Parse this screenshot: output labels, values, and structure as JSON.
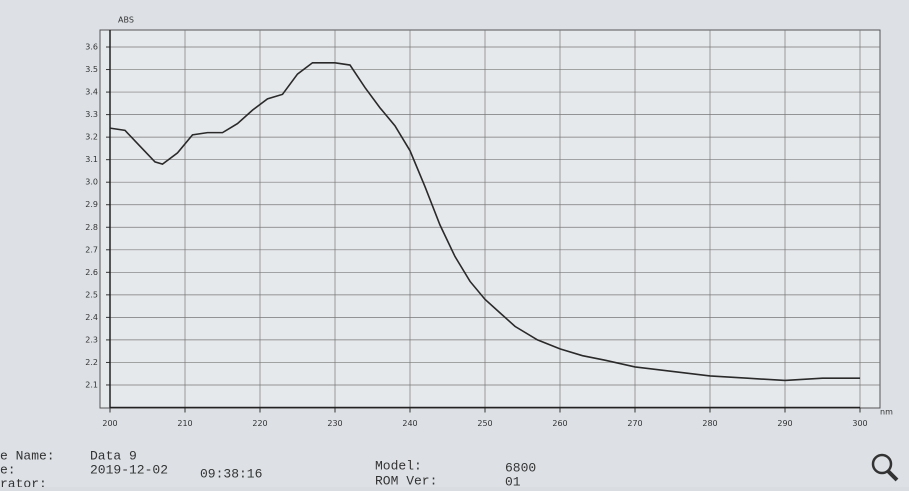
{
  "chart_data": {
    "type": "line",
    "y_label": "ABS",
    "x_label": "nm",
    "x": [
      200,
      202,
      204,
      206,
      207,
      209,
      211,
      213,
      215,
      217,
      219,
      221,
      223,
      225,
      227,
      230,
      232,
      234,
      236,
      238,
      240,
      242,
      244,
      246,
      248,
      250,
      252,
      254,
      257,
      260,
      263,
      266,
      270,
      275,
      280,
      285,
      290,
      295,
      300
    ],
    "series": [
      {
        "color": "#2a2a2a",
        "values": [
          3.24,
          3.23,
          3.16,
          3.09,
          3.08,
          3.13,
          3.21,
          3.22,
          3.22,
          3.26,
          3.32,
          3.37,
          3.39,
          3.48,
          3.53,
          3.53,
          3.52,
          3.42,
          3.33,
          3.25,
          3.14,
          2.98,
          2.81,
          2.67,
          2.56,
          2.48,
          2.42,
          2.36,
          2.3,
          2.26,
          2.23,
          2.21,
          2.18,
          2.16,
          2.14,
          2.13,
          2.12,
          2.13,
          2.13
        ]
      }
    ],
    "xlim": [
      200,
      300
    ],
    "xticks": [
      200,
      210,
      220,
      230,
      240,
      250,
      260,
      270,
      280,
      290,
      300
    ],
    "ylim": [
      2.0,
      3.65
    ],
    "yticks": [
      2.1,
      2.2,
      2.3,
      2.4,
      2.5,
      2.6,
      2.7,
      2.8,
      2.9,
      {
        "value": 3,
        "label": "3.0"
      },
      3.1,
      3.2,
      3.3,
      3.4,
      3.5,
      3.6
    ],
    "grid": true
  },
  "info": {
    "file_name_label": "e Name:",
    "file_name": "Data 9",
    "date_label": "e:",
    "date": "2019-12-02",
    "time": "09:38:16",
    "operator_label": "rator:",
    "model_label": "Model:",
    "model": "6800",
    "rom_label": "ROM Ver:",
    "rom": "01"
  }
}
